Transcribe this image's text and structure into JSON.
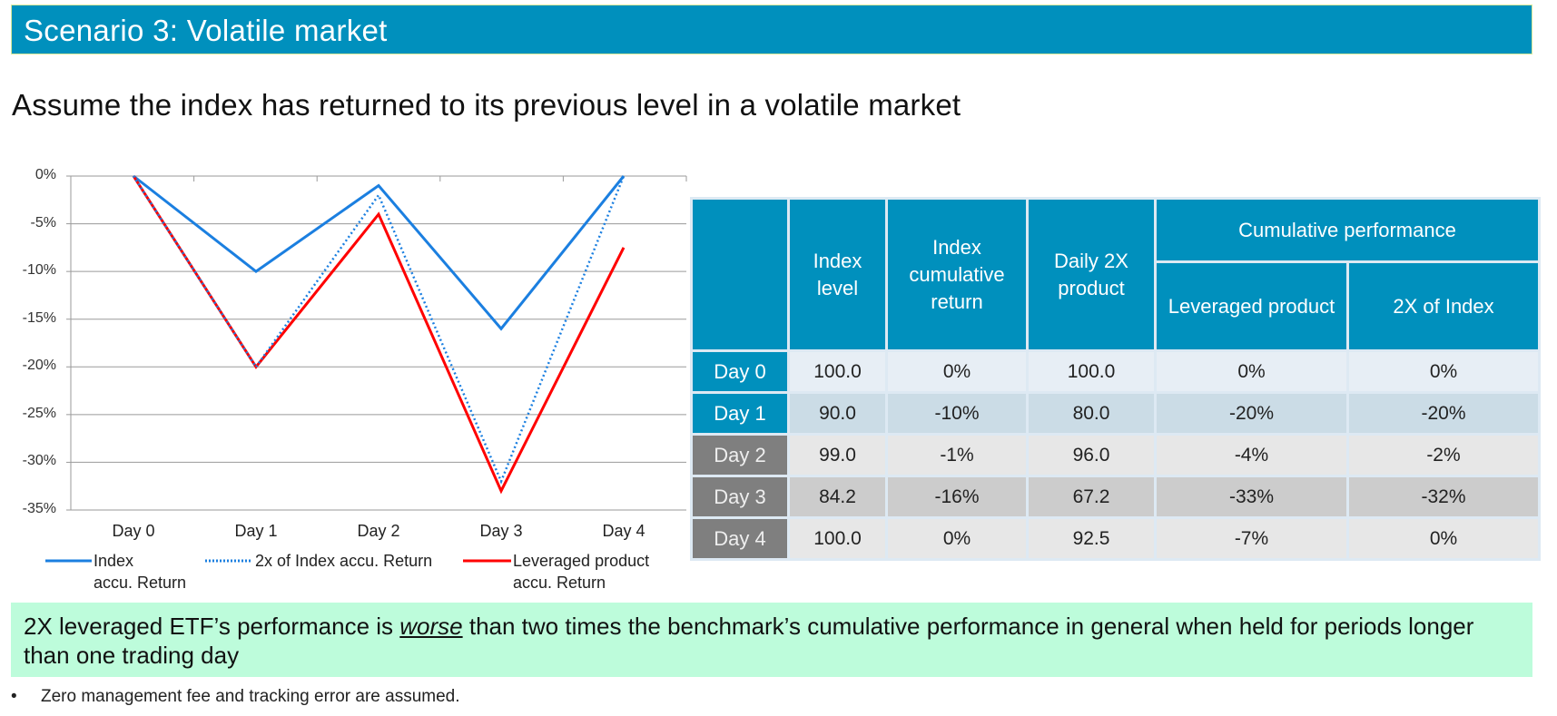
{
  "header": {
    "title": "Scenario 3: Volatile market",
    "subtitle": "Assume the index has returned to its previous level in a volatile market",
    "color": "#0090BD"
  },
  "chart_data": {
    "type": "line",
    "title": "",
    "xlabel": "",
    "ylabel": "",
    "categories": [
      "Day 0",
      "Day 1",
      "Day 2",
      "Day 3",
      "Day 4"
    ],
    "yticks": [
      "0%",
      "-5%",
      "-10%",
      "-15%",
      "-20%",
      "-25%",
      "-30%",
      "-35%"
    ],
    "ylim": [
      -35,
      0
    ],
    "grid": true,
    "legend_position": "bottom",
    "series": [
      {
        "name": "Index accu. Return",
        "values": [
          0,
          -10,
          -1,
          -16,
          0
        ],
        "color": "#1B7FE0",
        "style": "solid"
      },
      {
        "name": "2x of Index accu. Return",
        "values": [
          0,
          -20,
          -2,
          -32,
          0
        ],
        "color": "#1B7FE0",
        "style": "dotted"
      },
      {
        "name": "Leveraged product accu. Return",
        "values": [
          0,
          -20,
          -4,
          -33,
          -7.5
        ],
        "color": "#FF0000",
        "style": "solid"
      }
    ]
  },
  "legend": {
    "index_line1": "Index",
    "index_line2": "accu. Return",
    "twox": "2x of Index accu. Return",
    "lev_line1": "Leveraged product",
    "lev_line2": "accu. Return"
  },
  "table": {
    "headers": {
      "index_level": "Index level",
      "index_cum": "Index cumulative return",
      "daily2x": "Daily 2X product",
      "cum_perf": "Cumulative performance",
      "leveraged": "Leveraged product",
      "twox_index": "2X of Index"
    },
    "rows": [
      {
        "day": "Day 0",
        "index_level": "100.0",
        "index_cum": "0%",
        "daily2x": "100.0",
        "leveraged": "0%",
        "twox": "0%"
      },
      {
        "day": "Day 1",
        "index_level": "90.0",
        "index_cum": "-10%",
        "daily2x": "80.0",
        "leveraged": "-20%",
        "twox": "-20%"
      },
      {
        "day": "Day 2",
        "index_level": "99.0",
        "index_cum": "-1%",
        "daily2x": "96.0",
        "leveraged": "-4%",
        "twox": "-2%"
      },
      {
        "day": "Day 3",
        "index_level": "84.2",
        "index_cum": "-16%",
        "daily2x": "67.2",
        "leveraged": "-33%",
        "twox": "-32%"
      },
      {
        "day": "Day 4",
        "index_level": "100.0",
        "index_cum": "0%",
        "daily2x": "92.5",
        "leveraged": "-7%",
        "twox": "0%"
      }
    ]
  },
  "callout": {
    "before": "2X leveraged ETF’s performance is ",
    "emphasis": "worse",
    "after": " than two times the benchmark’s cumulative performance in general when held for periods longer than one trading day",
    "color": "#BDFCDB"
  },
  "footnote": {
    "bullet": "•",
    "text": "Zero management fee and tracking error are assumed."
  }
}
